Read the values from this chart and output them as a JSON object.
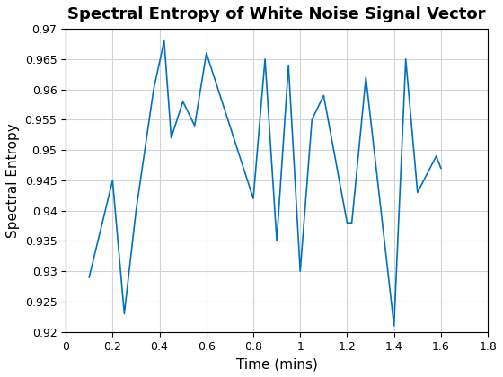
{
  "x": [
    0.1,
    0.2,
    0.25,
    0.3,
    0.375,
    0.42,
    0.45,
    0.5,
    0.55,
    0.6,
    0.8,
    0.85,
    0.9,
    0.95,
    1.0,
    1.05,
    1.1,
    1.2,
    1.22,
    1.28,
    1.4,
    1.45,
    1.5,
    1.58,
    1.6
  ],
  "y": [
    0.929,
    0.945,
    0.923,
    0.94,
    0.96,
    0.968,
    0.952,
    0.958,
    0.954,
    0.966,
    0.942,
    0.965,
    0.935,
    0.964,
    0.93,
    0.955,
    0.959,
    0.938,
    0.938,
    0.962,
    0.921,
    0.965,
    0.943,
    0.949,
    0.947
  ],
  "title": "Spectral Entropy of White Noise Signal Vector",
  "xlabel": "Time (mins)",
  "ylabel": "Spectral Entropy",
  "xlim": [
    0,
    1.8
  ],
  "ylim": [
    0.92,
    0.97
  ],
  "xticks": [
    0,
    0.2,
    0.4,
    0.6,
    0.8,
    1.0,
    1.2,
    1.4,
    1.6,
    1.8
  ],
  "yticks": [
    0.92,
    0.925,
    0.93,
    0.935,
    0.94,
    0.945,
    0.95,
    0.955,
    0.96,
    0.965,
    0.97
  ],
  "line_color": "#0072BD",
  "line_width": 1.2,
  "background_color": "#ffffff",
  "grid_color": "#d3d3d3",
  "title_fontsize": 13,
  "label_fontsize": 11
}
